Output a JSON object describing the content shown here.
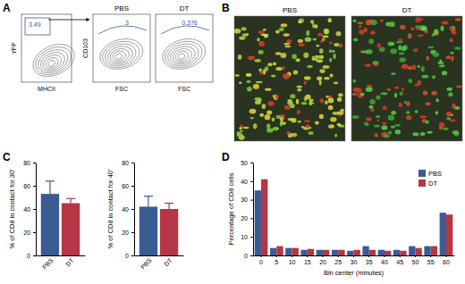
{
  "panels": [
    "A",
    "B",
    "C",
    "D"
  ],
  "flow_plots": [
    {
      "y_label": "YFP",
      "x_label": "MHCII",
      "gate": 3.49
    },
    {
      "title": "PBS",
      "y_label": "CD103",
      "x_label": "FSC",
      "gate": 3
    },
    {
      "title": "DT",
      "x_label": "FSC",
      "gate": 0.376
    }
  ],
  "images": [
    {
      "title": "PBS"
    },
    {
      "title": "DT"
    }
  ],
  "chart_data": [
    {
      "type": "bar",
      "y_label": "% of CD8 in contact for 30'",
      "categories": [
        "PBS",
        "DT"
      ],
      "values": [
        53,
        45
      ],
      "errors": [
        11,
        4
      ],
      "colors": [
        "#3b5b95",
        "#b53645"
      ],
      "ylim": [
        0,
        80
      ],
      "yticks": [
        0,
        20,
        40,
        60,
        80
      ]
    },
    {
      "type": "bar",
      "y_label": "% of CD8 in contact for 40'",
      "categories": [
        "PBS",
        "DT"
      ],
      "values": [
        42,
        40
      ],
      "errors": [
        9,
        5
      ],
      "colors": [
        "#3b5b95",
        "#b53645"
      ],
      "ylim": [
        0,
        80
      ],
      "yticks": [
        0,
        20,
        40,
        60,
        80
      ]
    },
    {
      "type": "bar",
      "x_label": "Bin center (minutes)",
      "y_label": "Percentage of CD8 cells",
      "categories": [
        0,
        5,
        10,
        15,
        20,
        25,
        30,
        35,
        40,
        45,
        50,
        55,
        60
      ],
      "series": [
        {
          "name": "PBS",
          "color": "#3b5b95",
          "values": [
            35,
            4,
            4,
            3,
            3,
            3,
            2.5,
            5,
            3,
            3,
            5,
            5,
            23
          ]
        },
        {
          "name": "DT",
          "color": "#b53645",
          "values": [
            41,
            5,
            4,
            3.5,
            3,
            3,
            3,
            3,
            2.5,
            2.5,
            4,
            5,
            22
          ]
        }
      ],
      "ylim": [
        0,
        50
      ],
      "yticks": [
        0,
        10,
        20,
        30,
        40,
        50
      ],
      "legend": "upper right"
    }
  ]
}
